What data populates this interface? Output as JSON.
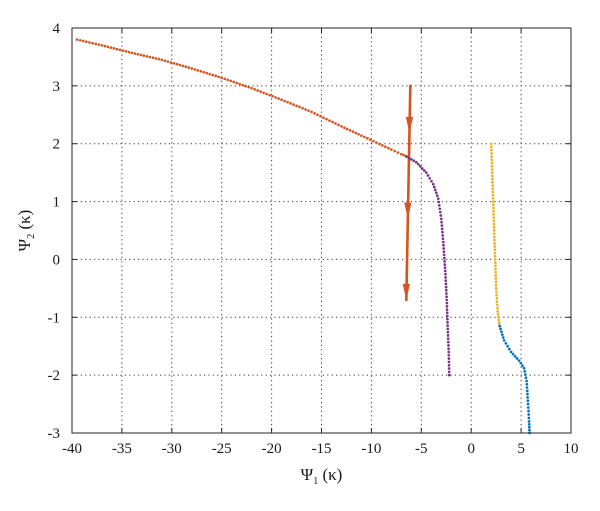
{
  "chart_data": {
    "type": "scatter",
    "xlabel": {
      "base": "Ψ",
      "sub": "1",
      "arg": " (κ)"
    },
    "ylabel": {
      "base": "Ψ",
      "sub": "2",
      "arg": " (κ)"
    },
    "xlim": [
      -40,
      10
    ],
    "ylim": [
      -3,
      4
    ],
    "xticks": [
      -40,
      -35,
      -30,
      -25,
      -20,
      -15,
      -10,
      -5,
      0,
      5,
      10
    ],
    "yticks": [
      -3,
      -2,
      -1,
      0,
      1,
      2,
      3,
      4
    ],
    "grid": true,
    "grid_style": "dotted",
    "series": [
      {
        "color": "#d9531e",
        "style": "dots",
        "points": [
          [
            -39.5,
            3.8
          ],
          [
            -37,
            3.7
          ],
          [
            -34,
            3.57
          ],
          [
            -31,
            3.45
          ],
          [
            -28,
            3.3
          ],
          [
            -25,
            3.14
          ],
          [
            -22,
            2.96
          ],
          [
            -19,
            2.76
          ],
          [
            -16,
            2.55
          ],
          [
            -13,
            2.3
          ],
          [
            -11,
            2.14
          ],
          [
            -9.5,
            2.02
          ],
          [
            -8,
            1.9
          ],
          [
            -7,
            1.82
          ],
          [
            -6.5,
            1.78
          ]
        ]
      },
      {
        "color": "#d9531e",
        "style": "arrow",
        "points": [
          [
            -6.1,
            3.0
          ],
          [
            -6.5,
            -0.7
          ]
        ]
      },
      {
        "color": "#7e2f8e",
        "style": "dots",
        "points": [
          [
            -6.5,
            1.78
          ],
          [
            -5.5,
            1.68
          ],
          [
            -4.5,
            1.5
          ],
          [
            -3.8,
            1.3
          ],
          [
            -3.3,
            1.05
          ],
          [
            -3.0,
            0.7
          ],
          [
            -2.8,
            0.3
          ],
          [
            -2.6,
            -0.2
          ],
          [
            -2.45,
            -0.7
          ],
          [
            -2.35,
            -1.2
          ],
          [
            -2.25,
            -1.6
          ],
          [
            -2.2,
            -2.0
          ]
        ]
      },
      {
        "color": "#edb120",
        "style": "dots",
        "points": [
          [
            2.0,
            2.0
          ],
          [
            2.1,
            1.5
          ],
          [
            2.2,
            1.0
          ],
          [
            2.3,
            0.5
          ],
          [
            2.4,
            0.0
          ],
          [
            2.5,
            -0.5
          ],
          [
            2.65,
            -0.9
          ],
          [
            2.85,
            -1.15
          ]
        ]
      },
      {
        "color": "#0072bd",
        "style": "dots",
        "points": [
          [
            2.85,
            -1.15
          ],
          [
            3.3,
            -1.4
          ],
          [
            4.0,
            -1.6
          ],
          [
            4.8,
            -1.75
          ],
          [
            5.3,
            -1.88
          ],
          [
            5.55,
            -2.1
          ],
          [
            5.7,
            -2.5
          ],
          [
            5.8,
            -2.8
          ],
          [
            5.85,
            -3.0
          ]
        ]
      }
    ]
  }
}
